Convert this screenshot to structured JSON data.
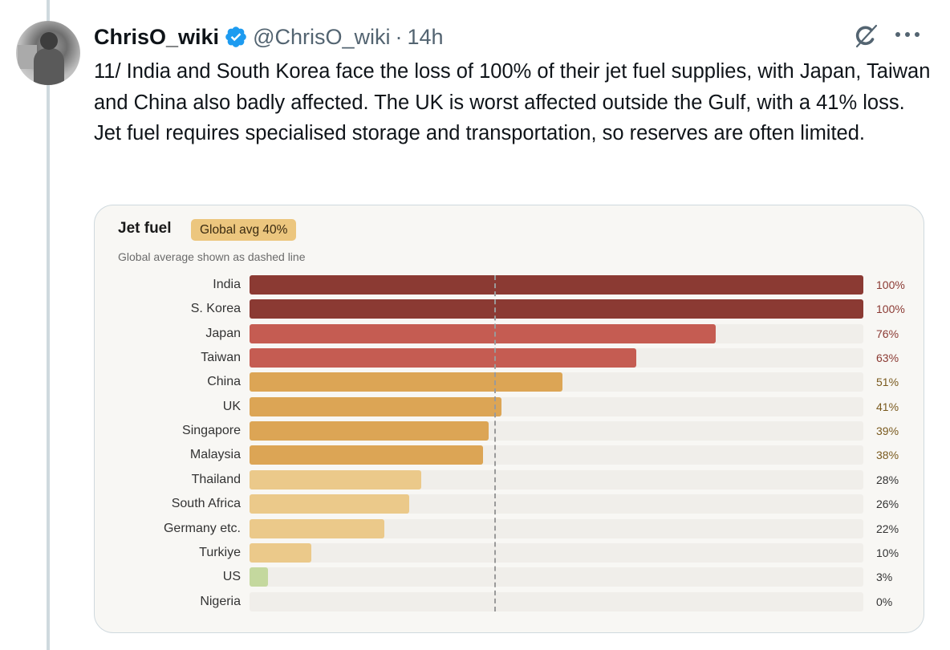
{
  "tweet": {
    "display_name": "ChrisO_wiki",
    "handle": "@ChrisO_wiki",
    "separator": "·",
    "time": "14h",
    "text": "11/ India and South Korea face the loss of 100% of their jet fuel supplies, with Japan, Taiwan and China also badly affected. The UK is worst affected outside the Gulf, with a 41% loss. Jet fuel requires specialised storage and transportation, so reserves are often limited.",
    "icons": {
      "verified": "verified-badge-icon",
      "grok": "grok-icon",
      "more": "more-icon"
    },
    "colors": {
      "verified": "#1d9bf0",
      "text": "#0f1419",
      "muted": "#536471"
    }
  },
  "chart_data": {
    "type": "bar",
    "orientation": "horizontal",
    "title": "Jet fuel",
    "badge": "Global avg 40%",
    "subtitle": "Global average shown as dashed line",
    "reference_line": {
      "value": 40,
      "style": "dashed"
    },
    "xlim": [
      0,
      100
    ],
    "unit": "%",
    "categories": [
      "India",
      "S. Korea",
      "Japan",
      "Taiwan",
      "China",
      "UK",
      "Singapore",
      "Malaysia",
      "Thailand",
      "South Africa",
      "Germany etc.",
      "Turkiye",
      "US",
      "Nigeria"
    ],
    "values": [
      100,
      100,
      76,
      63,
      51,
      41,
      39,
      38,
      28,
      26,
      22,
      10,
      3,
      0
    ],
    "value_labels": [
      "100%",
      "100%",
      "76%",
      "63%",
      "51%",
      "41%",
      "39%",
      "38%",
      "28%",
      "26%",
      "22%",
      "10%",
      "3%",
      "0%"
    ],
    "bar_colors": [
      "#8b3a33",
      "#8b3a33",
      "#c55c52",
      "#c55c52",
      "#dca555",
      "#dca555",
      "#dca555",
      "#dca555",
      "#ebc98a",
      "#ebc98a",
      "#ebc98a",
      "#ebc98a",
      "#c4d89e",
      "#c4d89e"
    ],
    "label_colors": [
      "#8b3a33",
      "#8b3a33",
      "#8b3a33",
      "#8b3a33",
      "#7a5a1e",
      "#7a5a1e",
      "#7a5a1e",
      "#7a5a1e",
      "#333333",
      "#333333",
      "#333333",
      "#333333",
      "#333333",
      "#333333"
    ]
  }
}
